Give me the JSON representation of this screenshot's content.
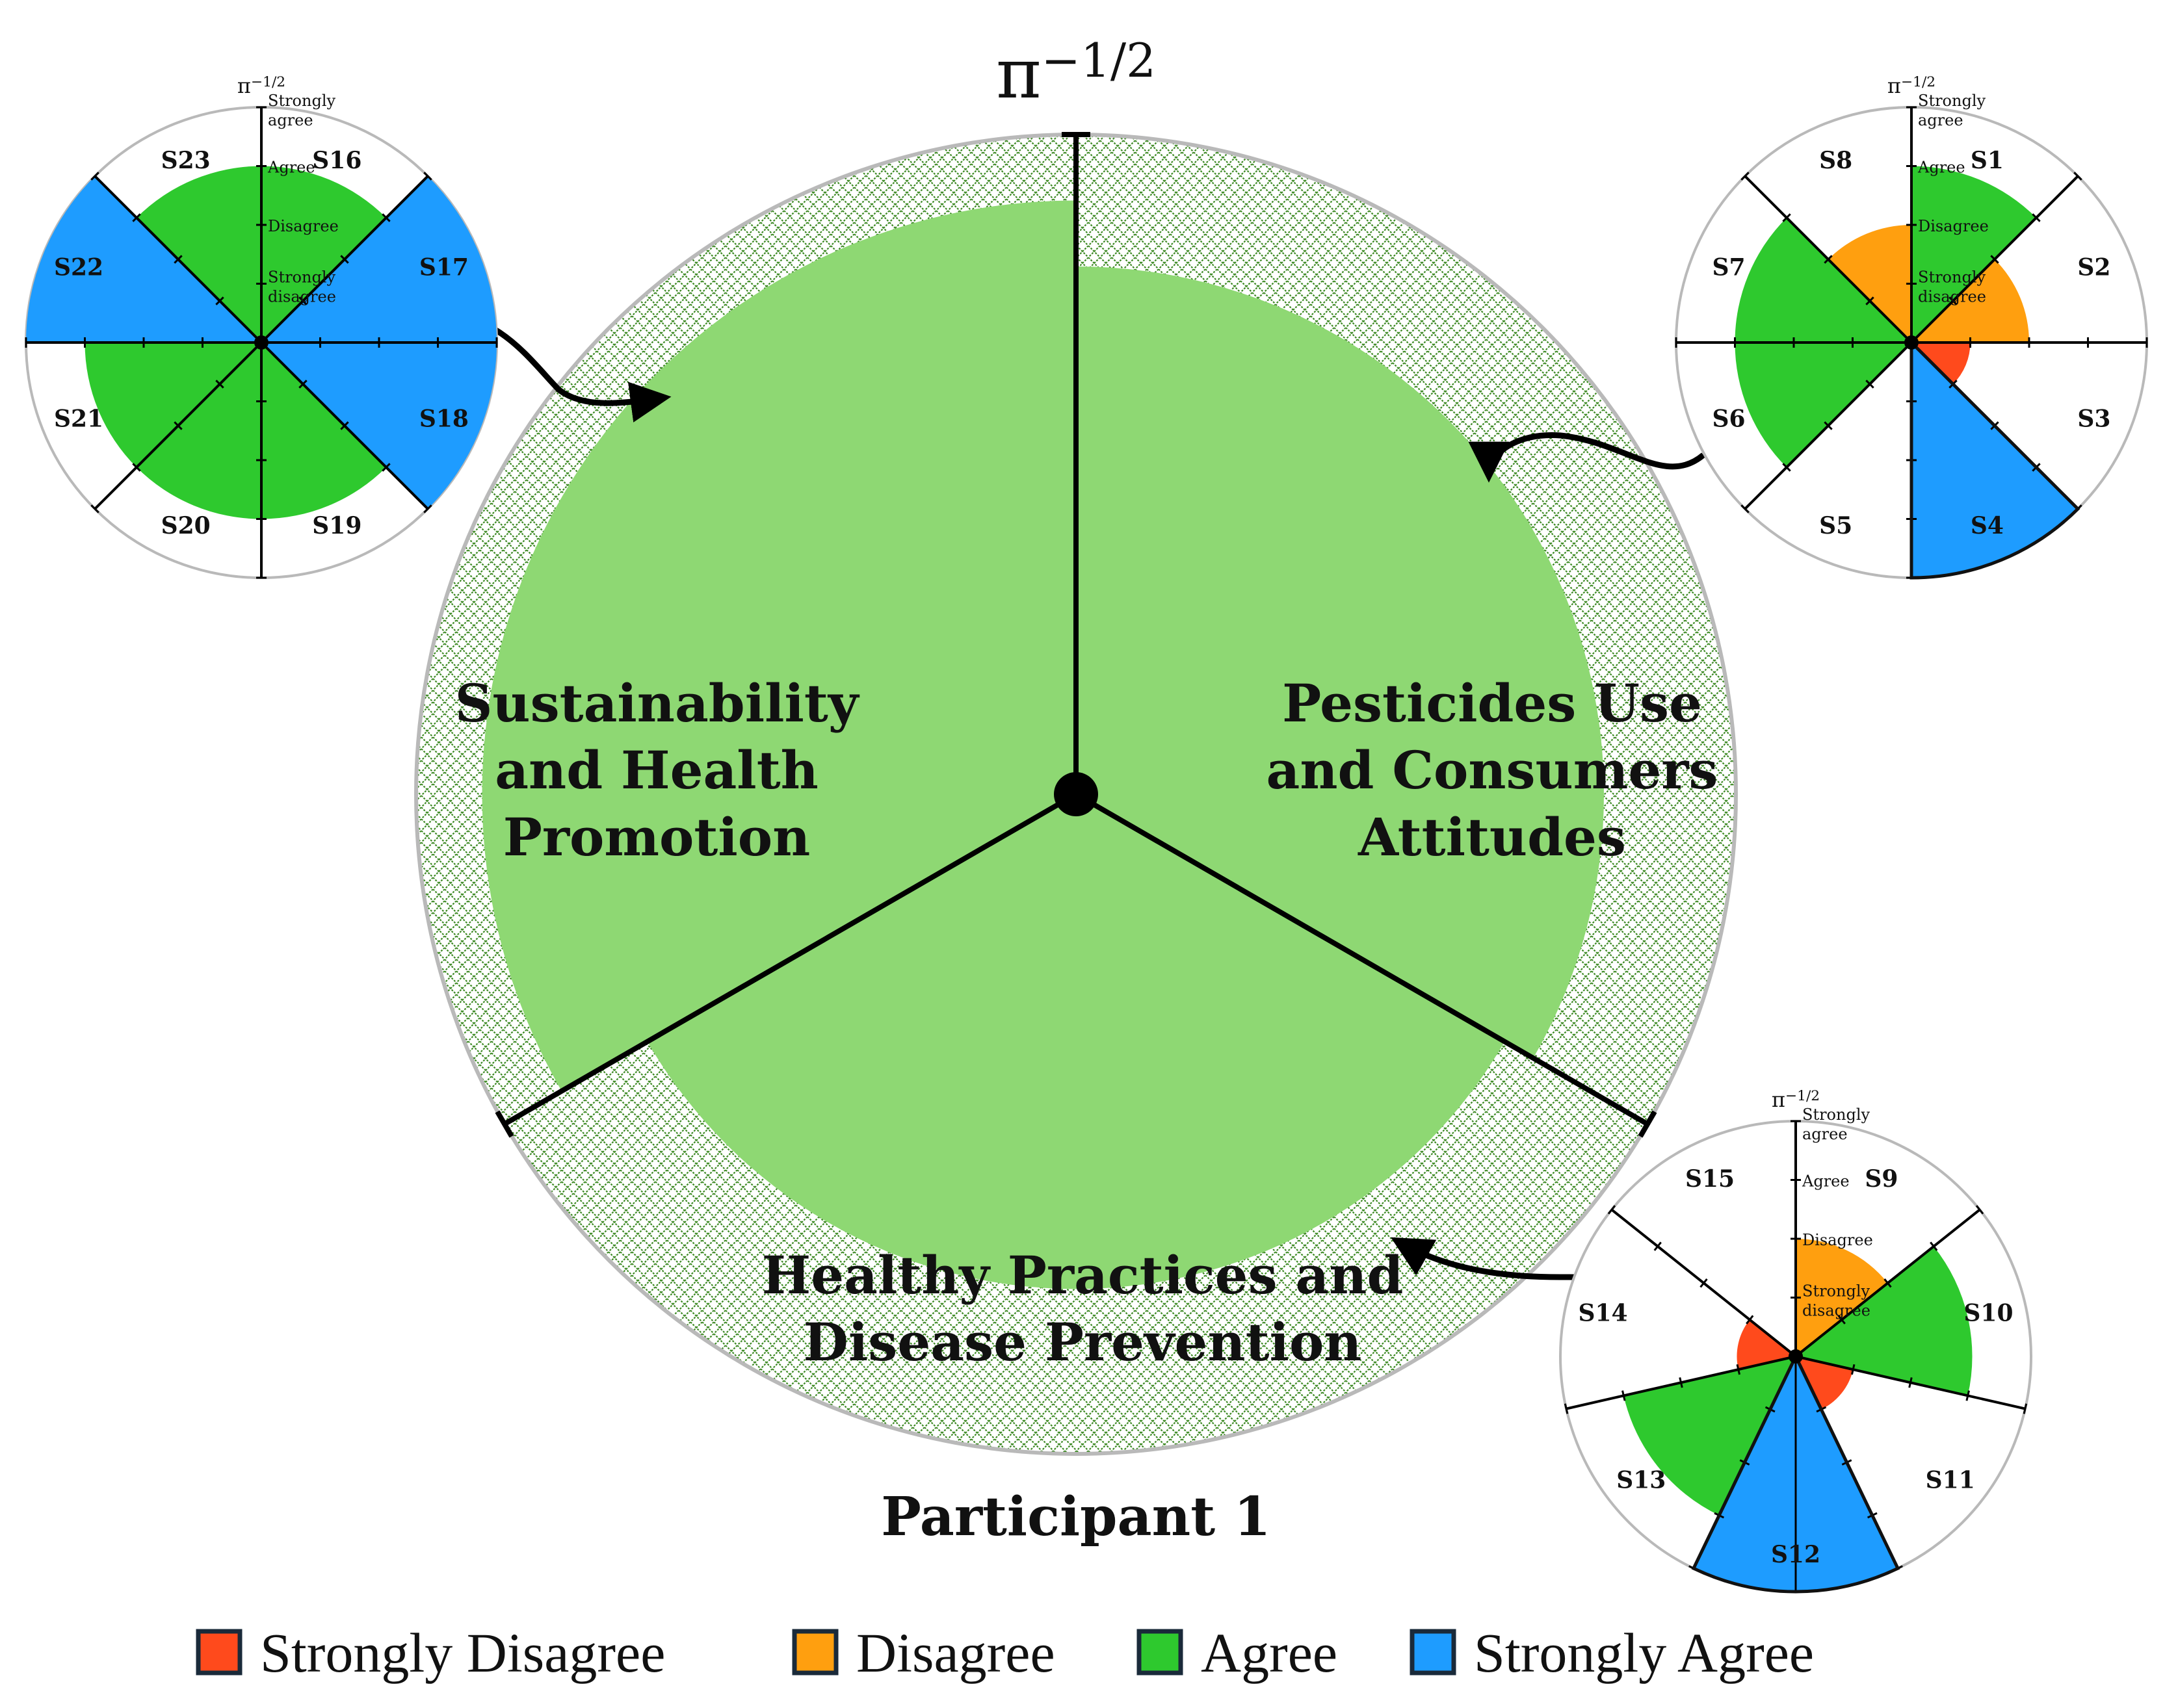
{
  "colors": {
    "strongly_disagree": "#ff4a1c",
    "disagree": "#ff9f0f",
    "agree": "#2ec92e",
    "strongly_agree": "#1e9cff",
    "domain_fill": "#8ed873",
    "hatch_line": "#3e8a25",
    "outline": "#b9b9b9"
  },
  "chart_data": [
    {
      "type": "polar-bar",
      "name_label": "Participant 1",
      "axis_label": "π^{−1/2}",
      "categories": [
        "Pesticides Use and Consumers Attitudes",
        "Healthy Practices and Disease Prevention",
        "Sustainability and Health Promotion"
      ],
      "category_lines": [
        [
          "Pesticides Use",
          "and Consumers",
          "Attitudes"
        ],
        [
          "Healthy Practices and",
          "Disease Prevention"
        ],
        [
          "Sustainability",
          "and Health",
          "Promotion"
        ]
      ],
      "values": [
        0.8,
        0.75,
        0.9
      ],
      "ylim": [
        0,
        1
      ]
    },
    {
      "type": "polar-bar",
      "group": "Pesticides Use and Consumers Attitudes",
      "axis_label": "π^{−1/2}",
      "levels": [
        "Strongly disagree",
        "Disagree",
        "Agree",
        "Strongly agree"
      ],
      "level_lines": [
        [
          "Strongly",
          "disagree"
        ],
        [
          "Disagree"
        ],
        [
          "Agree"
        ],
        [
          "Strongly",
          "agree"
        ]
      ],
      "categories": [
        "S1",
        "S2",
        "S3",
        "S4",
        "S5",
        "S6",
        "S7",
        "S8"
      ],
      "values": [
        3,
        2,
        1,
        4,
        0,
        3,
        3,
        2
      ]
    },
    {
      "type": "polar-bar",
      "group": "Healthy Practices and Disease Prevention",
      "axis_label": "π^{−1/2}",
      "levels": [
        "Strongly disagree",
        "Disagree",
        "Agree",
        "Strongly agree"
      ],
      "level_lines": [
        [
          "Strongly",
          "disagree"
        ],
        [
          "Disagree"
        ],
        [
          "Agree"
        ],
        [
          "Strongly",
          "agree"
        ]
      ],
      "categories": [
        "S9",
        "S10",
        "S11",
        "S12",
        "S13",
        "S14",
        "S15"
      ],
      "values": [
        2,
        3,
        1,
        4,
        3,
        1,
        0
      ]
    },
    {
      "type": "polar-bar",
      "group": "Sustainability and Health Promotion",
      "axis_label": "π^{−1/2}",
      "levels": [
        "Strongly disagree",
        "Disagree",
        "Agree",
        "Strongly agree"
      ],
      "level_lines": [
        [
          "Strongly",
          "disagree"
        ],
        [
          "Disagree"
        ],
        [
          "Agree"
        ],
        [
          "Strongly",
          "agree"
        ]
      ],
      "categories": [
        "S16",
        "S17",
        "S18",
        "S19",
        "S20",
        "S21",
        "S22",
        "S23"
      ],
      "values": [
        3,
        4,
        4,
        3,
        3,
        3,
        4,
        3
      ]
    }
  ],
  "legend": [
    {
      "label": "Strongly Disagree",
      "color_key": "strongly_disagree"
    },
    {
      "label": "Disagree",
      "color_key": "disagree"
    },
    {
      "label": "Agree",
      "color_key": "agree"
    },
    {
      "label": "Strongly Agree",
      "color_key": "strongly_agree"
    }
  ]
}
